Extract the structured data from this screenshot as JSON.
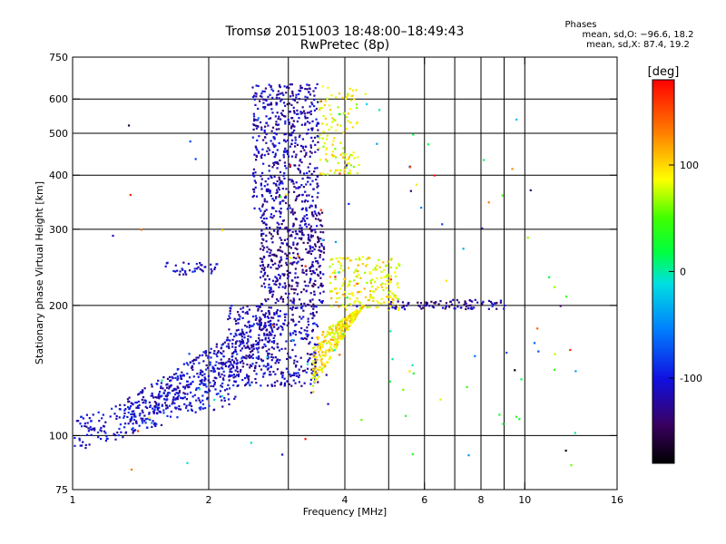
{
  "title_line1": "Tromsø 20151003 18:48:00–18:49:43",
  "title_line2": "RwPretec (8p)",
  "stats": {
    "header": "Phases",
    "o_mode": "mean, sd,O: −96.6, 18.2",
    "x_mode": "mean, sd,X:  87.4, 19.2"
  },
  "chart_data": {
    "type": "scatter",
    "xlabel": "Frequency [MHz]",
    "ylabel": "Stationary phase Virtual Height [km]",
    "xscale": "log",
    "yscale": "log",
    "xlim": [
      1,
      16
    ],
    "ylim": [
      75,
      750
    ],
    "xticks": [
      1,
      2,
      4,
      6,
      8,
      10,
      16
    ],
    "xticks_minor": [
      3,
      5,
      7,
      9
    ],
    "yticks": [
      75,
      100,
      200,
      300,
      400,
      500,
      600,
      750
    ],
    "grid": true,
    "colorbar": {
      "label": "[deg]",
      "range": [
        -180,
        180
      ],
      "ticks": [
        100,
        0,
        -100
      ]
    },
    "clusters": [
      {
        "name": "low-band O trace",
        "freq": [
          1.0,
          2.3
        ],
        "height": [
          100,
          130
        ],
        "phase": -105,
        "n": 260
      },
      {
        "name": "O trace rise",
        "freq": [
          1.3,
          2.8
        ],
        "height": [
          110,
          180
        ],
        "phase": -110,
        "n": 380
      },
      {
        "name": "O main body",
        "freq": [
          2.2,
          3.5
        ],
        "height": [
          130,
          200
        ],
        "phase": -115,
        "n": 420
      },
      {
        "name": "O F-region",
        "freq": [
          2.6,
          3.6
        ],
        "height": [
          200,
          330
        ],
        "phase": -125,
        "n": 420
      },
      {
        "name": "O upper",
        "freq": [
          2.5,
          3.5
        ],
        "height": [
          330,
          650
        ],
        "phase": -115,
        "n": 500
      },
      {
        "name": "oblique trace",
        "freq": [
          1.6,
          2.1
        ],
        "height": [
          235,
          252
        ],
        "phase": -110,
        "n": 40
      },
      {
        "name": "X trace low",
        "freq": [
          3.4,
          4.4
        ],
        "height": [
          130,
          200
        ],
        "phase": 95,
        "n": 300
      },
      {
        "name": "X trace upper",
        "freq": [
          3.7,
          5.3
        ],
        "height": [
          195,
          260
        ],
        "phase": 90,
        "n": 200
      },
      {
        "name": "X mixed upper",
        "freq": [
          3.5,
          4.3
        ],
        "height": [
          400,
          650
        ],
        "phase": 85,
        "n": 120
      },
      {
        "name": "spread 200 km",
        "freq": [
          5.0,
          9.2
        ],
        "height": [
          196,
          206
        ],
        "phase": -125,
        "n": 90
      },
      {
        "name": "sparse",
        "freq": [
          1.2,
          13
        ],
        "height": [
          80,
          650
        ],
        "phase": 0,
        "n": 120
      }
    ]
  }
}
